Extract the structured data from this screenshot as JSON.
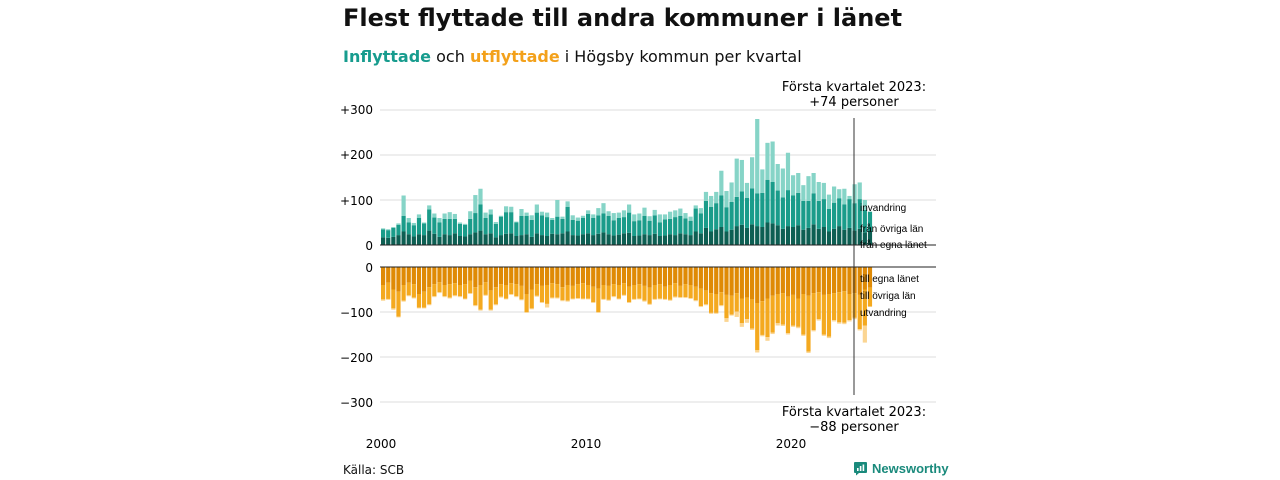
{
  "title": "Flest flyttade till andra kommuner i länet",
  "subtitle": {
    "in_word": "Inflyttade",
    "and_word": " och ",
    "out_word": "utflyttade",
    "rest": " i Högsby kommun per kvartal"
  },
  "source": "Källa: SCB",
  "brand": {
    "name": "Newsworthy",
    "icon": "newsworthy-logo-icon"
  },
  "colors": {
    "in_local": "#0d5f53",
    "in_county": "#1a9c8a",
    "in_immigration": "#86d4c7",
    "out_local": "#df8a06",
    "out_county": "#f4a91f",
    "out_emigration": "#fbd592",
    "subtitle_in": "#179c8e",
    "subtitle_out": "#f3a11b"
  },
  "annotations": {
    "top_line1": "Första kvartalet 2023:",
    "top_line2": "+74 personer",
    "bottom_line1": "Första kvartalet 2023:",
    "bottom_line2": "−88 personer"
  },
  "chart_data": {
    "type": "bar",
    "stacked": true,
    "diverging": true,
    "x_ticks": [
      "2000",
      "2010",
      "2020"
    ],
    "y_ticks_in": [
      "0",
      "+100",
      "+200",
      "+300"
    ],
    "y_ticks_out": [
      "0",
      "−100",
      "−200",
      "−300"
    ],
    "ylim_in": [
      0,
      300
    ],
    "ylim_out": [
      -300,
      0
    ],
    "grid": true,
    "highlight_quarter": "2023 Q1",
    "start_quarter": "2000 Q1",
    "end_quarter": "2023 Q1",
    "in_series": [
      {
        "name": "från egna länet",
        "values": [
          17,
          16,
          18,
          22,
          30,
          24,
          19,
          24,
          22,
          32,
          25,
          18,
          24,
          22,
          26,
          20,
          19,
          24,
          28,
          32,
          24,
          26,
          17,
          22,
          25,
          26,
          20,
          22,
          24,
          18,
          26,
          22,
          20,
          25,
          24,
          26,
          30,
          22,
          21,
          24,
          26,
          22,
          25,
          28,
          24,
          21,
          23,
          26,
          27,
          20,
          21,
          24,
          22,
          25,
          20,
          21,
          24,
          22,
          26,
          24,
          22,
          30,
          26,
          38,
          30,
          35,
          40,
          30,
          34,
          42,
          45,
          38,
          46,
          42,
          40,
          50,
          48,
          44,
          36,
          42,
          40,
          44,
          34,
          38,
          46,
          36,
          40,
          30,
          36,
          42,
          34,
          38,
          32,
          36,
          28,
          30
        ]
      },
      {
        "name": "från övriga län",
        "values": [
          18,
          17,
          20,
          23,
          35,
          26,
          25,
          36,
          26,
          47,
          36,
          32,
          34,
          36,
          32,
          27,
          26,
          34,
          43,
          58,
          36,
          42,
          30,
          41,
          48,
          47,
          30,
          43,
          41,
          38,
          46,
          44,
          42,
          31,
          39,
          32,
          55,
          34,
          33,
          36,
          43,
          38,
          41,
          42,
          41,
          34,
          37,
          36,
          45,
          33,
          34,
          41,
          32,
          41,
          30,
          36,
          34,
          40,
          39,
          35,
          32,
          51,
          44,
          60,
          55,
          58,
          70,
          54,
          62,
          65,
          74,
          67,
          80,
          73,
          76,
          95,
          92,
          77,
          70,
          80,
          70,
          72,
          64,
          60,
          69,
          62,
          62,
          50,
          58,
          62,
          56,
          64,
          61,
          66,
          50,
          44
        ]
      },
      {
        "name": "invandring",
        "values": [
          2,
          2,
          2,
          3,
          45,
          10,
          5,
          8,
          2,
          9,
          9,
          10,
          12,
          15,
          11,
          3,
          2,
          17,
          40,
          35,
          12,
          11,
          4,
          2,
          13,
          12,
          2,
          15,
          7,
          10,
          18,
          8,
          10,
          4,
          37,
          5,
          12,
          10,
          7,
          5,
          8,
          8,
          16,
          23,
          10,
          16,
          12,
          15,
          18,
          15,
          15,
          18,
          10,
          12,
          18,
          11,
          16,
          15,
          16,
          12,
          9,
          7,
          12,
          20,
          24,
          25,
          55,
          36,
          43,
          85,
          70,
          33,
          69,
          165,
          52,
          82,
          90,
          59,
          64,
          83,
          45,
          44,
          35,
          55,
          45,
          42,
          36,
          32,
          36,
          20,
          35,
          7,
          42,
          37,
          22,
          0
        ]
      }
    ],
    "out_series": [
      {
        "name": "till egna länet",
        "values": [
          -40,
          -35,
          -50,
          -55,
          -40,
          -35,
          -38,
          -60,
          -55,
          -45,
          -38,
          -34,
          -40,
          -38,
          -36,
          -40,
          -38,
          -30,
          -45,
          -40,
          -34,
          -52,
          -45,
          -38,
          -40,
          -36,
          -38,
          -42,
          -60,
          -50,
          -38,
          -42,
          -40,
          -36,
          -38,
          -45,
          -40,
          -42,
          -38,
          -36,
          -40,
          -44,
          -48,
          -40,
          -42,
          -38,
          -40,
          -36,
          -44,
          -40,
          -38,
          -42,
          -46,
          -40,
          -38,
          -44,
          -40,
          -36,
          -42,
          -38,
          -40,
          -44,
          -48,
          -52,
          -58,
          -60,
          -56,
          -62,
          -64,
          -58,
          -70,
          -68,
          -72,
          -80,
          -76,
          -70,
          -64,
          -60,
          -58,
          -66,
          -62,
          -70,
          -60,
          -64,
          -58,
          -56,
          -62,
          -60,
          -58,
          -56,
          -54,
          -60,
          -58,
          -62,
          -50,
          -46
        ]
      },
      {
        "name": "till övriga län",
        "values": [
          -32,
          -36,
          -42,
          -55,
          -35,
          -28,
          -30,
          -30,
          -35,
          -38,
          -27,
          -22,
          -25,
          -30,
          -27,
          -25,
          -32,
          -28,
          -40,
          -55,
          -28,
          -43,
          -38,
          -28,
          -30,
          -24,
          -27,
          -30,
          -40,
          -42,
          -26,
          -36,
          -42,
          -32,
          -30,
          -29,
          -35,
          -28,
          -31,
          -34,
          -30,
          -34,
          -52,
          -31,
          -31,
          -27,
          -30,
          -26,
          -34,
          -31,
          -32,
          -33,
          -36,
          -31,
          -32,
          -27,
          -33,
          -30,
          -25,
          -29,
          -29,
          -30,
          -39,
          -31,
          -44,
          -42,
          -29,
          -52,
          -42,
          -41,
          -55,
          -48,
          -65,
          -105,
          -75,
          -86,
          -82,
          -65,
          -70,
          -81,
          -68,
          -63,
          -90,
          -124,
          -82,
          -60,
          -88,
          -95,
          -60,
          -67,
          -70,
          -58,
          -55,
          -76,
          -80,
          -42
        ]
      },
      {
        "name": "utvandring",
        "values": [
          -3,
          -2,
          -3,
          -2,
          -2,
          -2,
          -2,
          -2,
          -2,
          -2,
          -2,
          -2,
          -2,
          -2,
          -2,
          -2,
          -2,
          -2,
          -2,
          -2,
          -2,
          -2,
          -2,
          -2,
          -2,
          -2,
          -2,
          -2,
          -2,
          -2,
          -2,
          -2,
          -8,
          -2,
          -2,
          -2,
          -2,
          -2,
          -2,
          -2,
          -2,
          -2,
          -2,
          -2,
          -2,
          -2,
          -2,
          -2,
          -2,
          -2,
          -2,
          -2,
          -2,
          -2,
          -2,
          -2,
          -2,
          -2,
          -2,
          -2,
          -2,
          -2,
          -2,
          -2,
          -2,
          -2,
          -2,
          -8,
          -2,
          -12,
          -8,
          -8,
          -3,
          -5,
          -3,
          -8,
          -3,
          -5,
          -3,
          -3,
          -3,
          -3,
          -3,
          -3,
          -3,
          -3,
          -3,
          -3,
          -3,
          -3,
          -3,
          -3,
          -3,
          -3,
          -38,
          0
        ]
      }
    ]
  }
}
